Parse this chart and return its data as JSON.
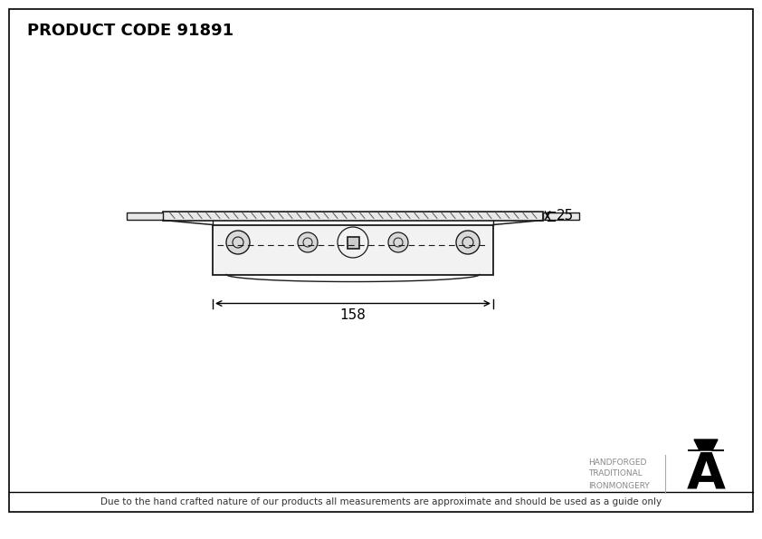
{
  "title": "PRODUCT CODE 91891",
  "footer_text": "Due to the hand crafted nature of our products all measurements are approximate and should be used as a guide only",
  "brand_line1": "HANDFORGED",
  "brand_line2": "TRADITIONAL",
  "brand_line3": "IRONMONGERY",
  "dim_width": "158",
  "dim_height": "25",
  "bg_color": "#ffffff",
  "border_color": "#000000",
  "line_color": "#000000",
  "drawing_color": "#1a1a1a",
  "title_fontsize": 13,
  "footer_fontsize": 7.5,
  "brand_fontsize": 6.5
}
